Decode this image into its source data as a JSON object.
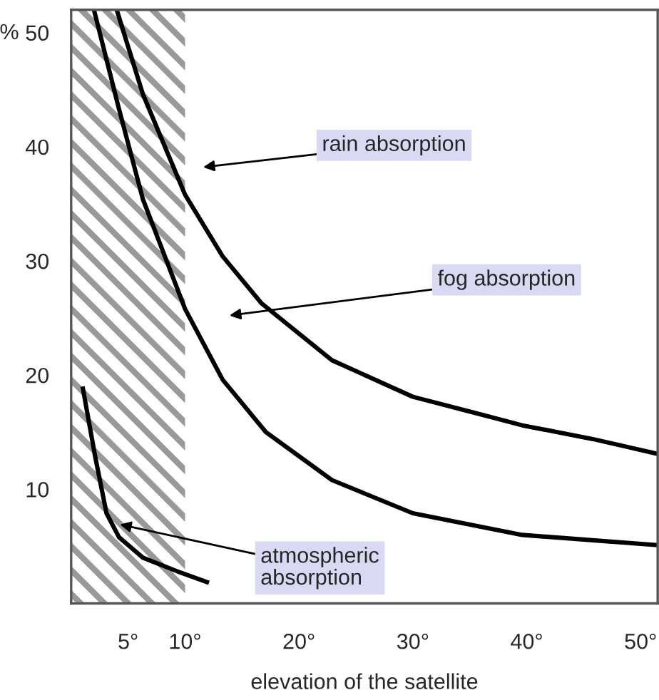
{
  "chart_data": {
    "type": "line",
    "ylabel": "%",
    "xlabel": "elevation of the satellite",
    "xlim": [
      0,
      51.5
    ],
    "ylim": [
      0,
      52
    ],
    "xticks": [
      {
        "value": 5,
        "label": "5°"
      },
      {
        "value": 10,
        "label": "10°"
      },
      {
        "value": 20,
        "label": "20°"
      },
      {
        "value": 30,
        "label": "30°"
      },
      {
        "value": 40,
        "label": "40°"
      },
      {
        "value": 50,
        "label": "50°"
      }
    ],
    "yticks": [
      10,
      20,
      30,
      40,
      50
    ],
    "grid": false,
    "legend": false,
    "marker": "none",
    "line_style": "solid",
    "bands": [
      {
        "axis": "x",
        "from": 0,
        "to": 10,
        "color": "#999999"
      }
    ],
    "series": [
      {
        "color": "#000000",
        "x": [
          4.0,
          6.3,
          10,
          13.3,
          16.7,
          22.9,
          30,
          35.4,
          39.6,
          45.8,
          51.5
        ],
        "values": [
          52,
          44.6,
          35.8,
          30.4,
          26.3,
          21.3,
          18.1,
          16.7,
          15.6,
          14.4,
          13.1
        ]
      },
      {
        "color": "#000000",
        "x": [
          2.0,
          4.2,
          6.3,
          10,
          13.3,
          17.1,
          22.9,
          30,
          39.6,
          51.5
        ],
        "values": [
          52,
          43.3,
          35.4,
          25.8,
          19.6,
          15.0,
          10.8,
          7.9,
          6.0,
          5.1
        ]
      },
      {
        "color": "#000000",
        "x": [
          1.0,
          2.1,
          3.1,
          4.2,
          6.3,
          9.6,
          12.1
        ],
        "values": [
          19.0,
          12.9,
          7.9,
          5.8,
          4.0,
          2.7,
          1.8
        ]
      }
    ],
    "annotations": [
      "rain absorption",
      "fog absorption",
      "atmospheric\nabsorption"
    ]
  }
}
